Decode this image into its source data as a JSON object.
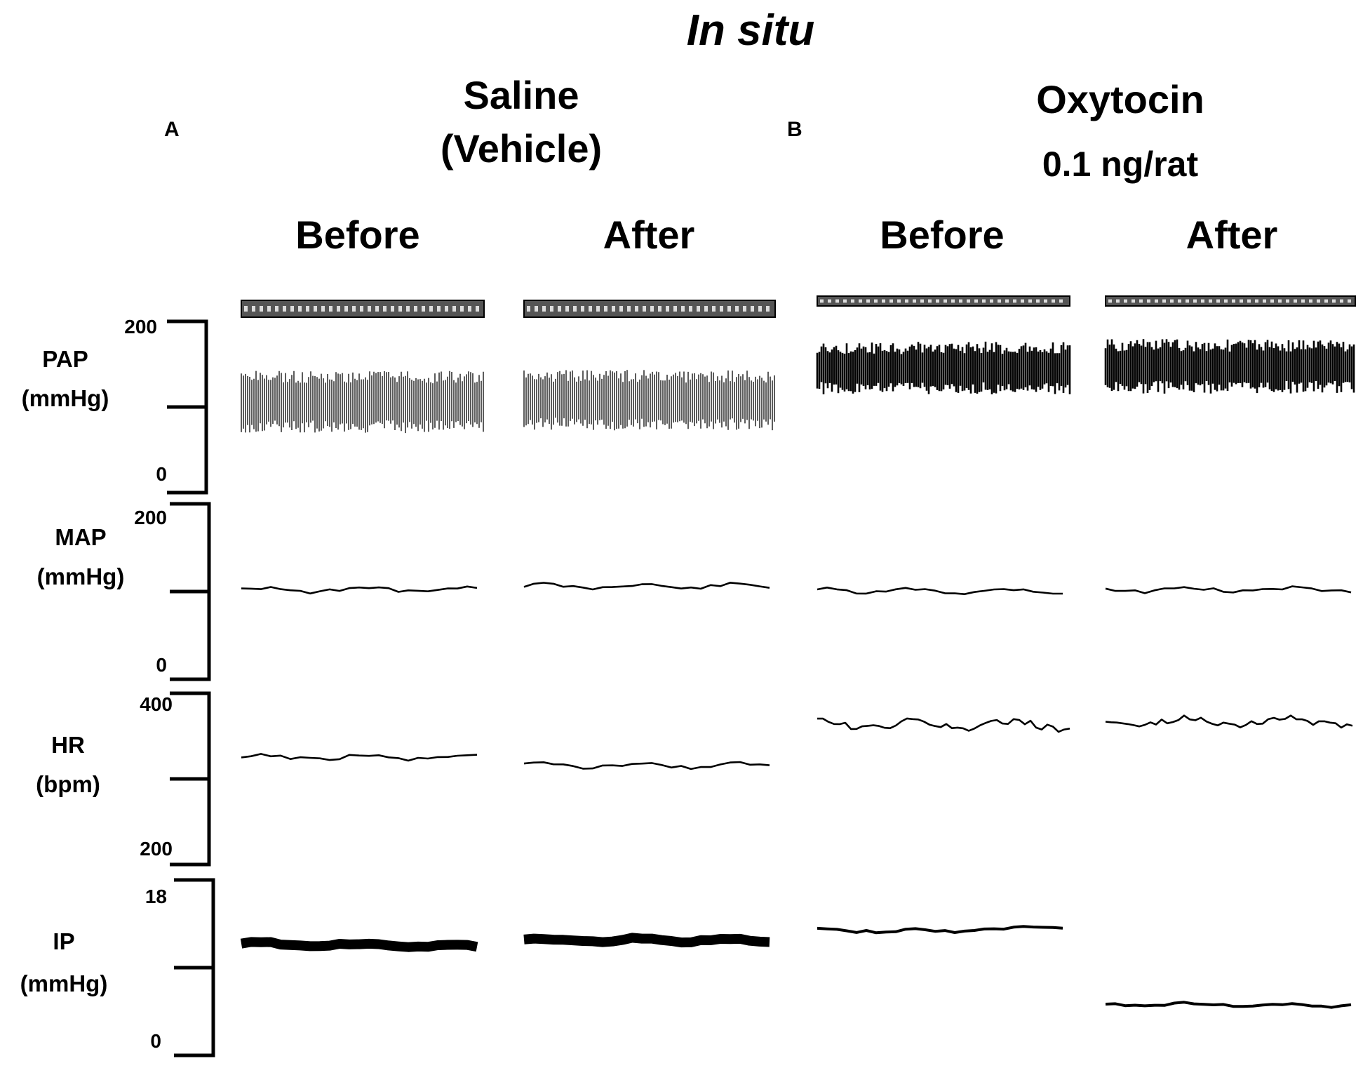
{
  "figure": {
    "title": "In situ",
    "panels": [
      {
        "letter": "A",
        "condition_line1": "Saline",
        "condition_line2": "(Vehicle)"
      },
      {
        "letter": "B",
        "condition_line1": "Oxytocin",
        "condition_line2": "0.1 ng/rat"
      }
    ],
    "phase_labels": [
      "Before",
      "After",
      "Before",
      "After"
    ]
  },
  "chart_data": {
    "type": "line",
    "x_columns": [
      "Saline Before",
      "Saline After",
      "Oxytocin Before",
      "Oxytocin After"
    ],
    "axes": [
      {
        "name_line1": "PAP",
        "name_line2": "(mmHg)",
        "tick_top": "200",
        "tick_bottom": "0",
        "ylim": [
          0,
          200
        ]
      },
      {
        "name_line1": "MAP",
        "name_line2": "(mmHg)",
        "tick_top": "200",
        "tick_bottom": "0",
        "ylim": [
          0,
          200
        ]
      },
      {
        "name_line1": "HR",
        "name_line2": "(bpm)",
        "tick_top": "400",
        "tick_bottom": "200",
        "ylim": [
          200,
          400
        ]
      },
      {
        "name_line1": "IP",
        "name_line2": "(mmHg)",
        "tick_top": "18",
        "tick_bottom": "0",
        "ylim": [
          0,
          18
        ]
      }
    ],
    "series": [
      {
        "trace": "PAP",
        "systolic": [
          135,
          136,
          169,
          172
        ],
        "diastolic": [
          77,
          80,
          122,
          123
        ]
      },
      {
        "trace": "MAP",
        "values": [
          102,
          106,
          101,
          102
        ]
      },
      {
        "trace": "HR",
        "values": [
          325,
          316,
          363,
          367
        ]
      },
      {
        "trace": "IP",
        "values": [
          11.5,
          11.8,
          12.8,
          5.2
        ]
      }
    ],
    "grid": false,
    "legend": "none"
  }
}
